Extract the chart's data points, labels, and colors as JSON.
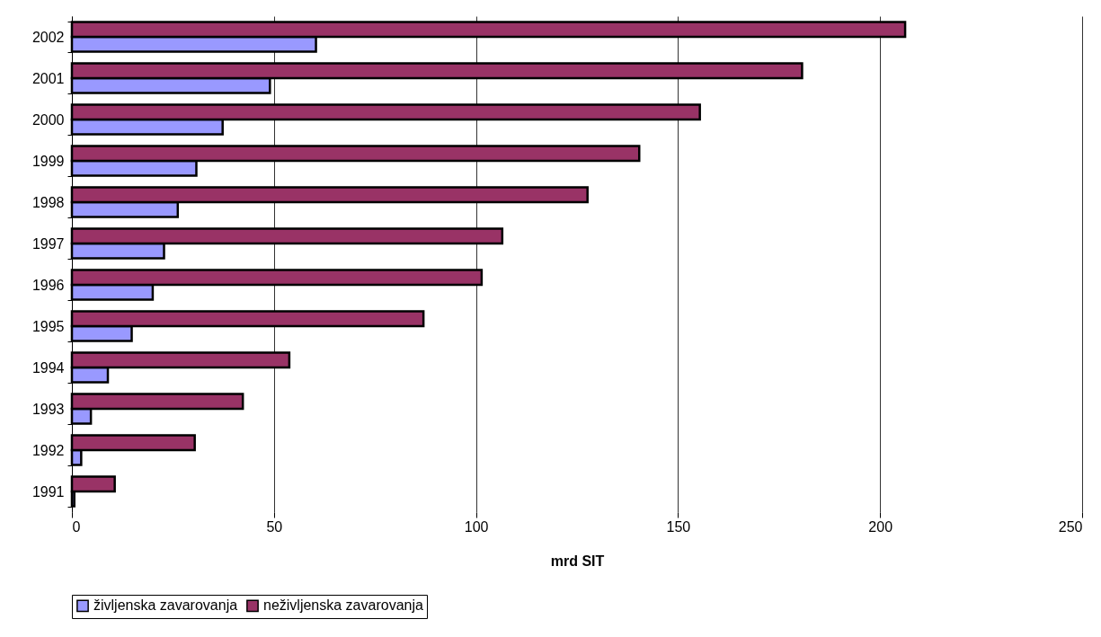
{
  "chart_data": {
    "type": "bar",
    "orientation": "horizontal",
    "xlabel": "mrd SIT",
    "categories": [
      "2002",
      "2001",
      "2000",
      "1999",
      "1998",
      "1997",
      "1996",
      "1995",
      "1994",
      "1993",
      "1992",
      "1991"
    ],
    "series": [
      {
        "name": "življenska zavarovanja",
        "color": "#9999ff",
        "values": [
          60.4,
          49.0,
          37.3,
          30.8,
          26.2,
          22.8,
          20.0,
          14.8,
          8.9,
          4.7,
          2.3,
          0.6
        ]
      },
      {
        "name": "neživljenska zavarovanja",
        "color": "#993366",
        "values": [
          206.2,
          180.7,
          155.4,
          140.4,
          127.6,
          106.5,
          101.4,
          87.0,
          53.8,
          42.3,
          30.4,
          10.6
        ]
      }
    ],
    "xlim": [
      0,
      250
    ],
    "xticks": [
      0,
      50,
      100,
      150,
      200,
      250
    ],
    "grid": "x",
    "legend": "bottom"
  }
}
